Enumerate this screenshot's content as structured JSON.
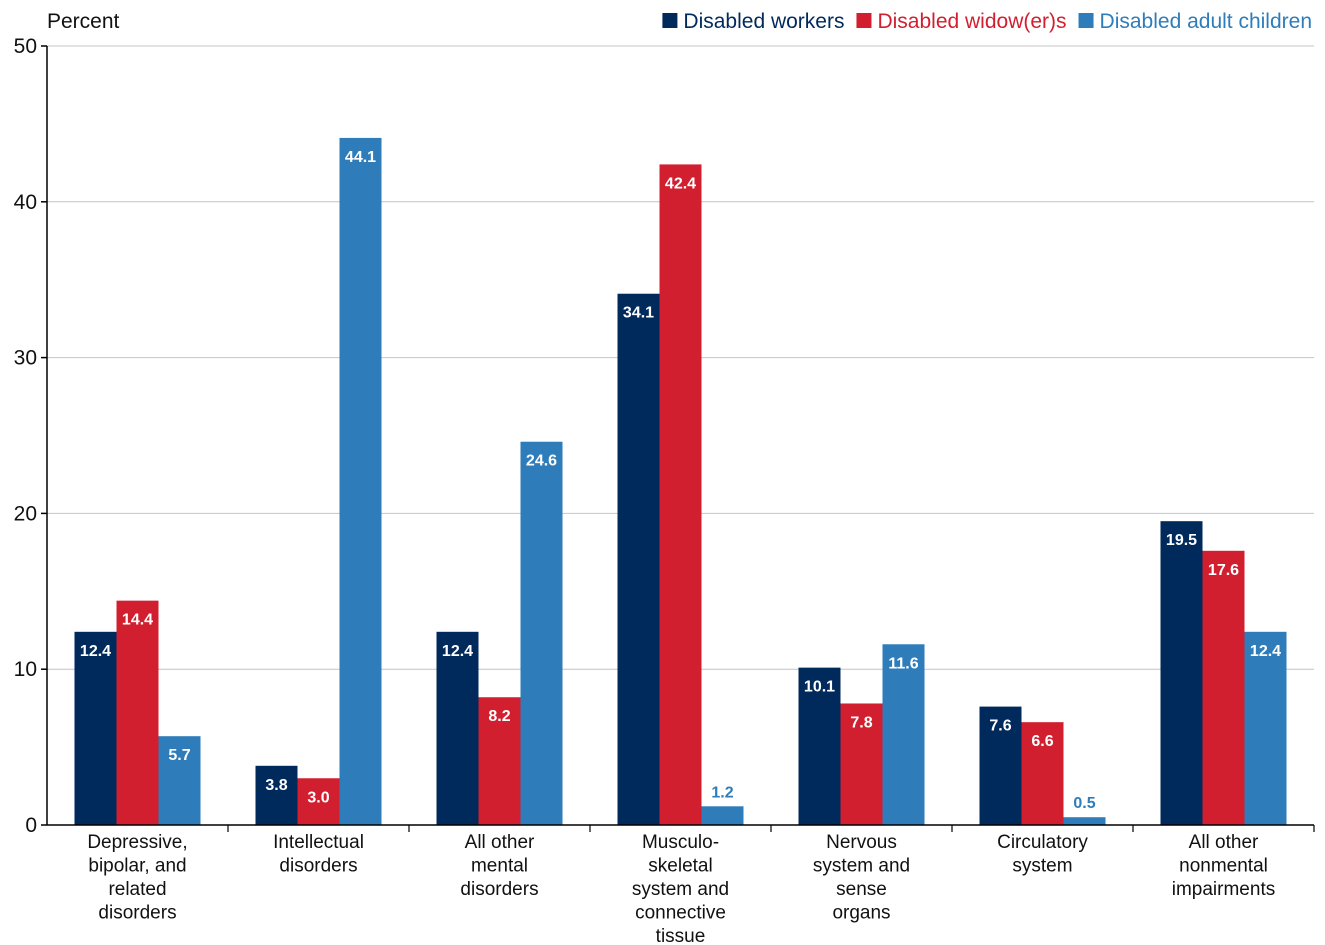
{
  "chart_data": {
    "type": "bar",
    "ylabel": "Percent",
    "ylim": [
      0,
      50
    ],
    "yticks": [
      "0",
      "10",
      "20",
      "30",
      "40",
      "50"
    ],
    "grid": true,
    "legend_position": "top-right",
    "categories": [
      [
        "Depressive,",
        "bipolar, and",
        "related",
        "disorders"
      ],
      [
        "Intellectual",
        "disorders"
      ],
      [
        "All other",
        "mental",
        "disorders"
      ],
      [
        "Musculo-",
        "skeletal",
        "system and",
        "connective",
        "tissue"
      ],
      [
        "Nervous",
        "system and",
        "sense",
        "organs"
      ],
      [
        "Circulatory",
        "system"
      ],
      [
        "All other",
        "nonmental",
        "impairments"
      ]
    ],
    "series": [
      {
        "name": "Disabled workers",
        "color": "#002a5c",
        "values": [
          12.4,
          3.8,
          12.4,
          34.1,
          10.1,
          7.6,
          19.5
        ],
        "labels": [
          "12.4",
          "3.8",
          "12.4",
          "34.1",
          "10.1",
          "7.6",
          "19.5"
        ]
      },
      {
        "name": "Disabled widow(er)s",
        "color": "#d11f2f",
        "values": [
          14.4,
          3.0,
          8.2,
          42.4,
          7.8,
          6.6,
          17.6
        ],
        "labels": [
          "14.4",
          "3.0",
          "8.2",
          "42.4",
          "7.8",
          "6.6",
          "17.6"
        ]
      },
      {
        "name": "Disabled adult children",
        "color": "#2e7dba",
        "values": [
          5.7,
          44.1,
          24.6,
          1.2,
          11.6,
          0.5,
          12.4
        ],
        "labels": [
          "5.7",
          "44.1",
          "24.6",
          "1.2",
          "11.6",
          "0.5",
          "12.4"
        ]
      }
    ]
  }
}
